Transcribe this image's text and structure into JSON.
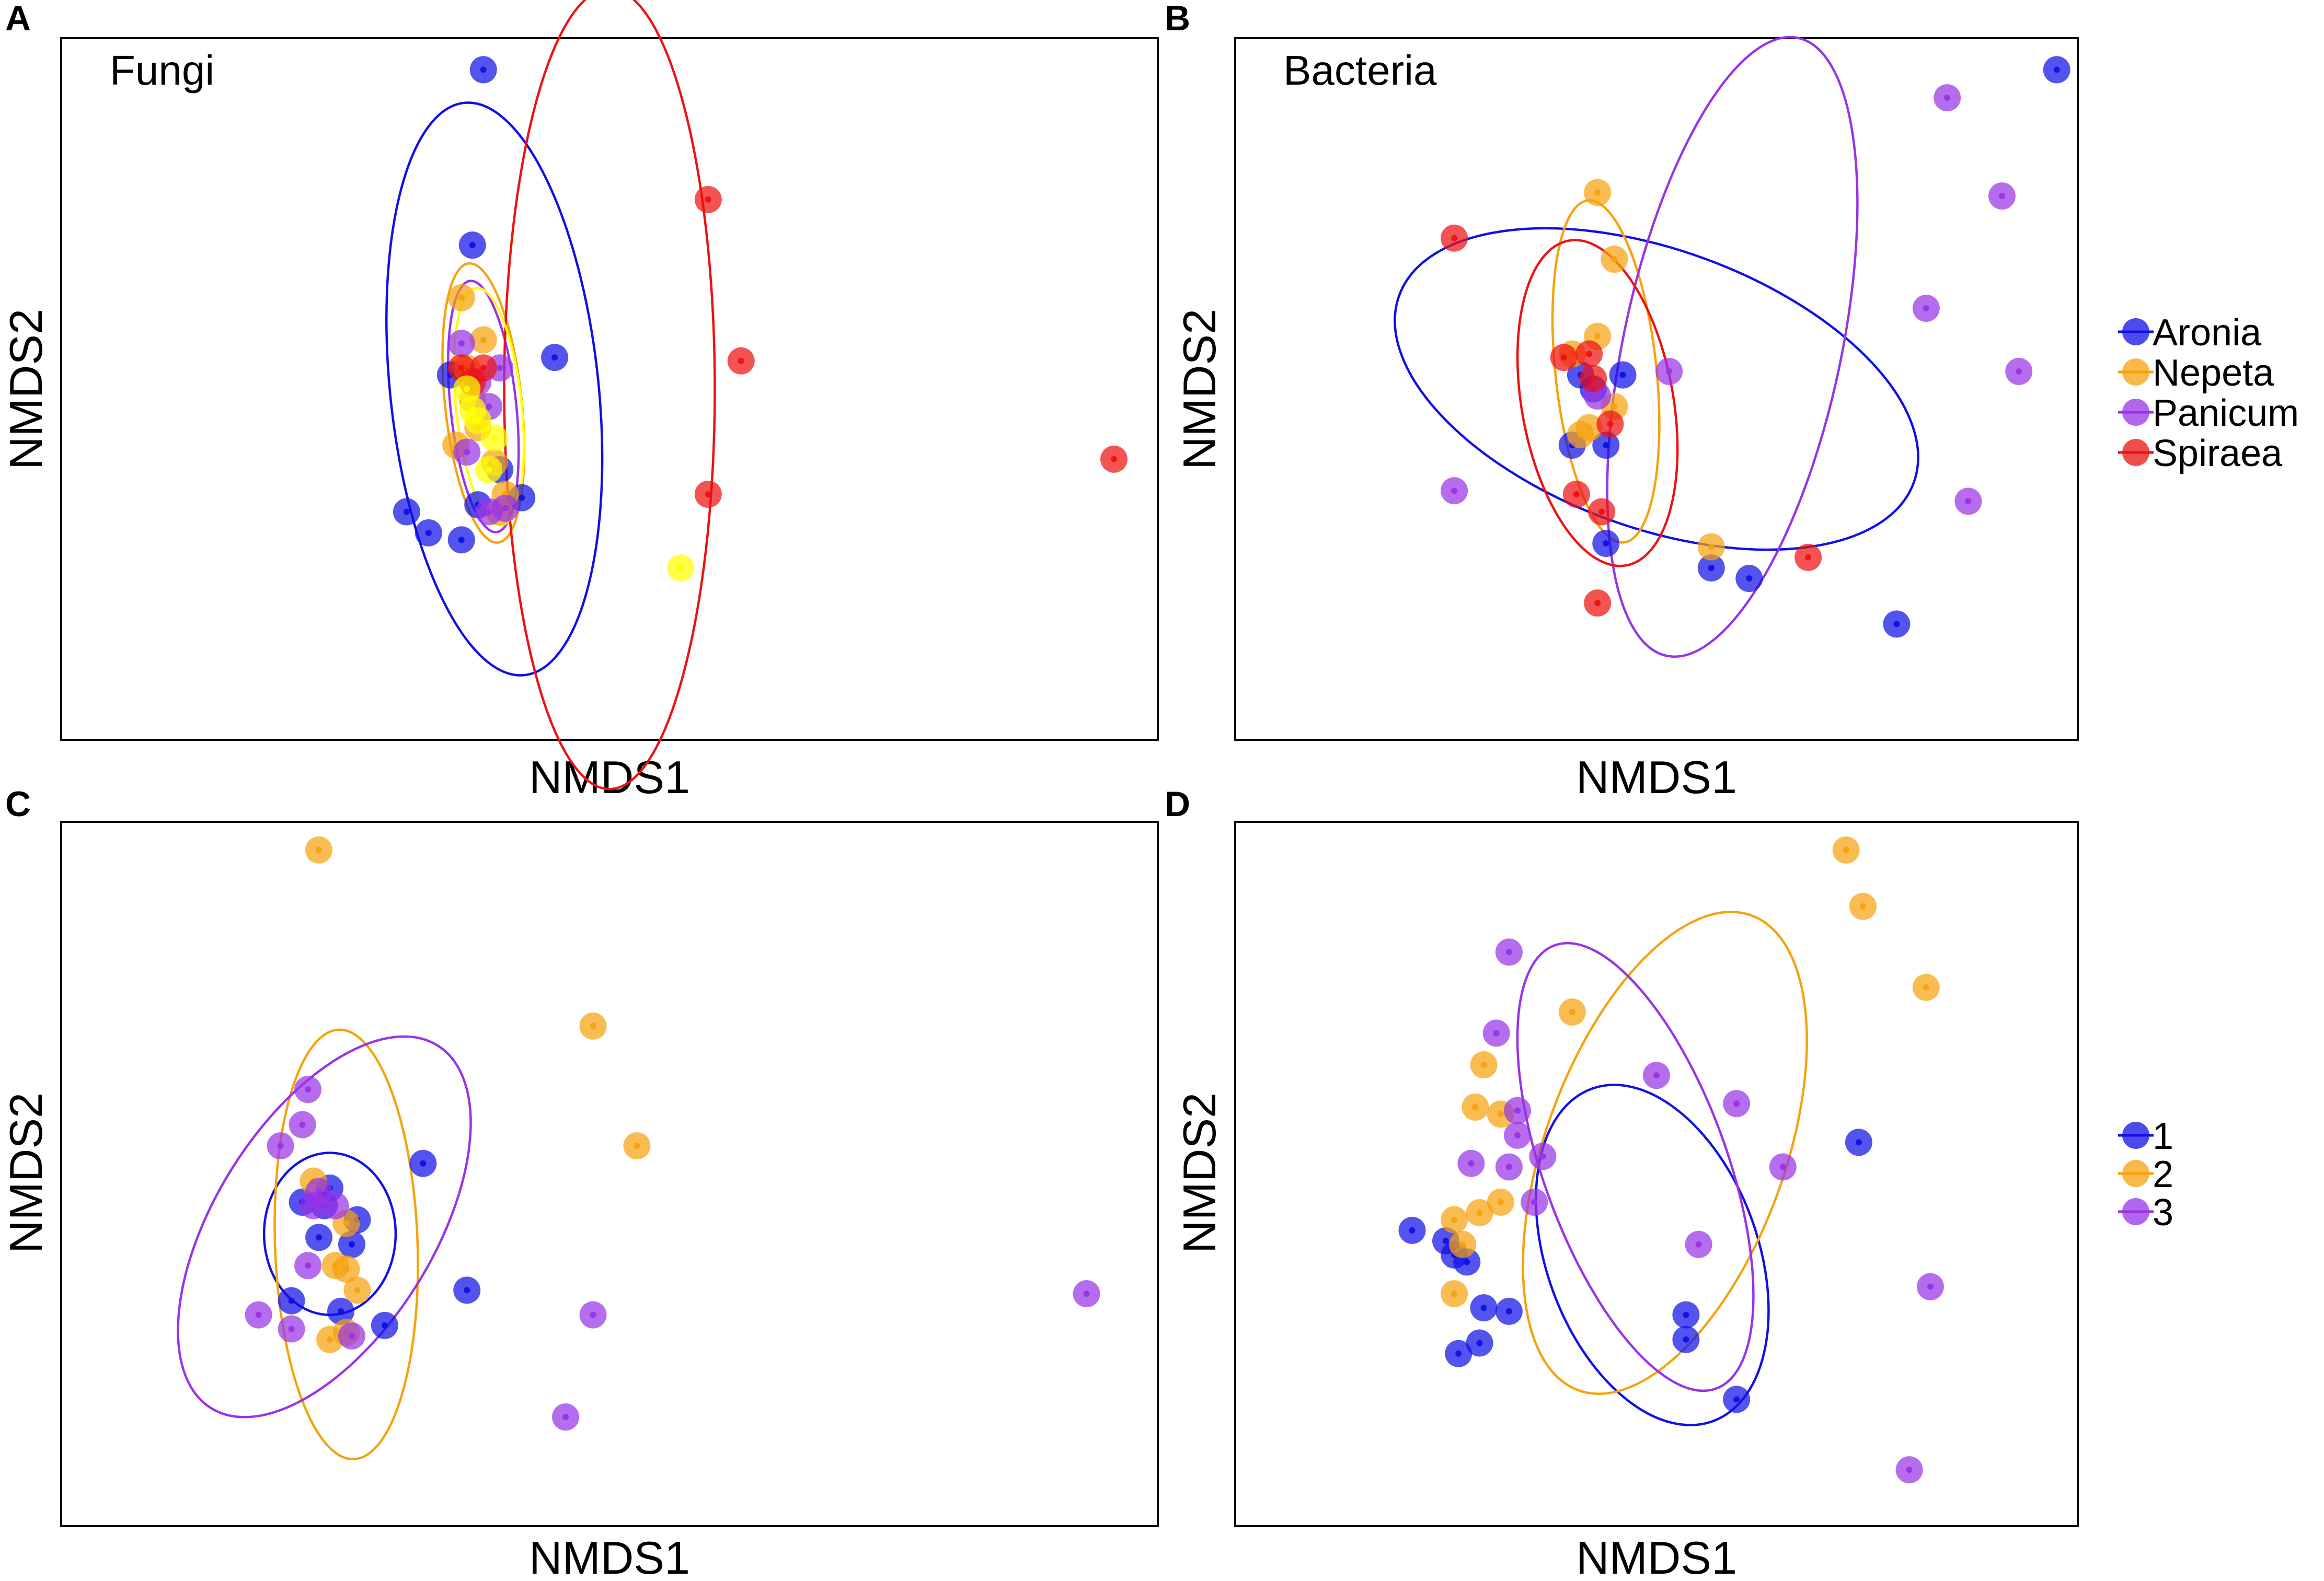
{
  "chart_data": [
    {
      "panel_letter": "A",
      "type": "scatter",
      "title": "Fungi",
      "xlabel": "NMDS1",
      "ylabel": "NMDS2",
      "xlim": [
        -1,
        1
      ],
      "ylim": [
        -1,
        1
      ],
      "series": [
        {
          "name": "Aronia",
          "color": "#1010e6",
          "points": [
            [
              -0.23,
              0.91
            ],
            [
              -0.1,
              0.09
            ],
            [
              -0.37,
              -0.35
            ],
            [
              -0.33,
              -0.41
            ],
            [
              -0.16,
              -0.31
            ],
            [
              -0.27,
              -0.43
            ],
            [
              -0.29,
              0.04
            ],
            [
              -0.2,
              -0.23
            ],
            [
              -0.25,
              0.41
            ],
            [
              -0.24,
              -0.33
            ]
          ],
          "ellipse": {
            "cx": -0.21,
            "cy": 0.0,
            "rx": 0.19,
            "ry": 0.82,
            "angle": 84
          }
        },
        {
          "name": "Nepeta",
          "color": "#f5a20e",
          "points": [
            [
              -0.27,
              0.26
            ],
            [
              -0.26,
              0.06
            ],
            [
              -0.24,
              -0.11
            ],
            [
              -0.21,
              -0.21
            ],
            [
              -0.25,
              -0.03
            ],
            [
              -0.2,
              -0.35
            ],
            [
              -0.28,
              -0.16
            ],
            [
              -0.23,
              0.14
            ],
            [
              -0.19,
              -0.3
            ]
          ],
          "ellipse": {
            "cx": -0.23,
            "cy": -0.04,
            "rx": 0.07,
            "ry": 0.4,
            "angle": 84
          }
        },
        {
          "name": "Panicum",
          "color": "#9933e6",
          "points": [
            [
              -0.27,
              0.13
            ],
            [
              -0.22,
              -0.05
            ],
            [
              -0.24,
              0.02
            ],
            [
              -0.22,
              -0.35
            ],
            [
              -0.19,
              -0.34
            ],
            [
              -0.26,
              -0.18
            ],
            [
              -0.2,
              0.06
            ]
          ],
          "ellipse": {
            "cx": -0.23,
            "cy": -0.05,
            "rx": 0.06,
            "ry": 0.36,
            "angle": 84
          }
        },
        {
          "name": "Spiraea",
          "color": "#ee1111",
          "points": [
            [
              0.18,
              0.54
            ],
            [
              0.24,
              0.08
            ],
            [
              0.18,
              -0.3
            ],
            [
              0.92,
              -0.2
            ],
            [
              -0.25,
              0.02
            ],
            [
              -0.27,
              0.06
            ],
            [
              -0.23,
              0.06
            ]
          ],
          "ellipse": {
            "cx": 0.0,
            "cy": 0.0,
            "rx": 0.73,
            "ry": 0.3,
            "angle": 0
          }
        },
        {
          "name": "",
          "color": "#ffff00",
          "points": [
            [
              0.13,
              -0.51
            ],
            [
              -0.24,
              -0.09
            ],
            [
              -0.21,
              -0.14
            ],
            [
              -0.25,
              -0.06
            ],
            [
              -0.22,
              -0.23
            ],
            [
              -0.26,
              0.0
            ]
          ],
          "ellipse": {
            "cx": -0.22,
            "cy": -0.05,
            "rx": 0.06,
            "ry": 0.34,
            "angle": 84
          }
        }
      ]
    },
    {
      "panel_letter": "B",
      "type": "scatter",
      "title": "Bacteria",
      "xlabel": "NMDS1",
      "ylabel": "NMDS2",
      "xlim": [
        -1,
        1
      ],
      "ylim": [
        -1,
        1
      ],
      "series": [
        {
          "name": "Aronia",
          "color": "#1010e6",
          "points": [
            [
              0.95,
              0.91
            ],
            [
              0.22,
              -0.54
            ],
            [
              0.57,
              -0.67
            ],
            [
              -0.12,
              -0.44
            ],
            [
              0.13,
              -0.51
            ],
            [
              -0.18,
              0.04
            ],
            [
              -0.2,
              -0.16
            ],
            [
              -0.15,
              0.0
            ],
            [
              -0.12,
              -0.16
            ],
            [
              -0.08,
              0.04
            ]
          ],
          "ellipse": {
            "cx": 0.0,
            "cy": 0.0,
            "rx": 0.33,
            "ry": 0.78,
            "angle": 20
          }
        },
        {
          "name": "Nepeta",
          "color": "#f5a20e",
          "points": [
            [
              -0.14,
              0.56
            ],
            [
              -0.1,
              0.37
            ],
            [
              -0.14,
              0.15
            ],
            [
              -0.2,
              0.1
            ],
            [
              -0.16,
              -0.11
            ],
            [
              -0.18,
              -0.13
            ],
            [
              -0.1,
              -0.05
            ],
            [
              0.13,
              -0.45
            ]
          ],
          "ellipse": {
            "cx": -0.12,
            "cy": 0.05,
            "rx": 0.12,
            "ry": 0.49,
            "angle": 84
          }
        },
        {
          "name": "Panicum",
          "color": "#9933e6",
          "points": [
            [
              0.69,
              0.83
            ],
            [
              0.82,
              0.55
            ],
            [
              0.64,
              0.23
            ],
            [
              0.86,
              0.05
            ],
            [
              0.74,
              -0.32
            ],
            [
              0.03,
              0.05
            ],
            [
              -0.48,
              -0.29
            ],
            [
              -0.14,
              -0.02
            ]
          ],
          "ellipse": {
            "cx": 0.18,
            "cy": 0.12,
            "rx": 0.75,
            "ry": 0.31,
            "angle": 12
          }
        },
        {
          "name": "Spiraea",
          "color": "#ee1111",
          "points": [
            [
              -0.48,
              0.43
            ],
            [
              -0.22,
              0.09
            ],
            [
              -0.15,
              0.03
            ],
            [
              -0.16,
              0.1
            ],
            [
              -0.19,
              -0.3
            ],
            [
              -0.13,
              -0.35
            ],
            [
              -0.11,
              -0.1
            ],
            [
              0.36,
              -0.48
            ],
            [
              -0.14,
              -0.61
            ]
          ],
          "ellipse": {
            "cx": -0.14,
            "cy": -0.04,
            "rx": 0.18,
            "ry": 0.47,
            "angle": 80
          }
        }
      ],
      "legend": {
        "placement": "right",
        "items": [
          "Aronia",
          "Nepeta",
          "Panicum",
          "Spiraea"
        ]
      }
    },
    {
      "panel_letter": "C",
      "type": "scatter",
      "title": "",
      "xlabel": "NMDS1",
      "ylabel": "NMDS2",
      "xlim": [
        -1,
        1
      ],
      "ylim": [
        -1,
        1
      ],
      "series": [
        {
          "name": "1",
          "color": "#1010e6",
          "points": [
            [
              -0.34,
              0.03
            ],
            [
              -0.51,
              -0.04
            ],
            [
              -0.46,
              -0.13
            ],
            [
              -0.47,
              -0.2
            ],
            [
              -0.58,
              -0.36
            ],
            [
              -0.49,
              -0.39
            ],
            [
              -0.26,
              -0.33
            ],
            [
              -0.41,
              -0.43
            ],
            [
              -0.53,
              -0.18
            ],
            [
              -0.56,
              -0.08
            ],
            [
              -0.52,
              -0.09
            ]
          ],
          "ellipse": {
            "cx": -0.51,
            "cy": -0.17,
            "rx": 0.12,
            "ry": 0.23,
            "angle": 90
          }
        },
        {
          "name": "2",
          "color": "#f5a20e",
          "points": [
            [
              -0.53,
              0.92
            ],
            [
              -0.03,
              0.42
            ],
            [
              0.05,
              0.08
            ],
            [
              -0.54,
              -0.02
            ],
            [
              -0.48,
              -0.14
            ],
            [
              -0.48,
              -0.27
            ],
            [
              -0.46,
              -0.33
            ],
            [
              -0.51,
              -0.47
            ],
            [
              -0.48,
              -0.45
            ],
            [
              -0.5,
              -0.26
            ]
          ],
          "ellipse": {
            "cx": -0.48,
            "cy": -0.2,
            "rx": 0.13,
            "ry": 0.61,
            "angle": 88
          }
        },
        {
          "name": "3",
          "color": "#9933e6",
          "points": [
            [
              -0.55,
              0.24
            ],
            [
              -0.56,
              0.14
            ],
            [
              -0.6,
              0.08
            ],
            [
              -0.55,
              -0.26
            ],
            [
              -0.58,
              -0.44
            ],
            [
              -0.64,
              -0.4
            ],
            [
              -0.47,
              -0.46
            ],
            [
              -0.53,
              -0.05
            ],
            [
              -0.5,
              -0.09
            ],
            [
              -0.54,
              -0.09
            ],
            [
              0.87,
              -0.34
            ],
            [
              -0.03,
              -0.4
            ],
            [
              -0.08,
              -0.69
            ]
          ],
          "ellipse": {
            "cx": -0.52,
            "cy": -0.15,
            "rx": 0.39,
            "ry": 0.31,
            "angle": 32
          }
        }
      ],
      "legend": {
        "placement": "right",
        "items": [
          "1",
          "2",
          "3"
        ]
      }
    },
    {
      "panel_letter": "D",
      "type": "scatter",
      "title": "",
      "xlabel": "NMDS1",
      "ylabel": "NMDS2",
      "xlim": [
        -1,
        1
      ],
      "ylim": [
        -1,
        1
      ],
      "series": [
        {
          "name": "1",
          "color": "#1010e6",
          "points": [
            [
              0.48,
              0.09
            ],
            [
              -0.58,
              -0.16
            ],
            [
              -0.41,
              -0.38
            ],
            [
              -0.5,
              -0.19
            ],
            [
              -0.48,
              -0.23
            ],
            [
              -0.35,
              -0.39
            ],
            [
              -0.42,
              -0.48
            ],
            [
              0.07,
              -0.4
            ],
            [
              0.07,
              -0.47
            ],
            [
              -0.47,
              -0.51
            ],
            [
              0.19,
              -0.64
            ],
            [
              -0.45,
              -0.25
            ]
          ],
          "ellipse": {
            "cx": -0.01,
            "cy": -0.23,
            "rx": 0.42,
            "ry": 0.3,
            "angle": -20
          }
        },
        {
          "name": "2",
          "color": "#f5a20e",
          "points": [
            [
              0.45,
              0.92
            ],
            [
              0.49,
              0.76
            ],
            [
              0.64,
              0.53
            ],
            [
              -0.2,
              0.46
            ],
            [
              -0.41,
              0.31
            ],
            [
              -0.43,
              0.19
            ],
            [
              -0.37,
              0.17
            ],
            [
              -0.42,
              -0.11
            ],
            [
              -0.48,
              -0.13
            ],
            [
              -0.46,
              -0.2
            ],
            [
              -0.37,
              -0.08
            ],
            [
              -0.48,
              -0.34
            ]
          ],
          "ellipse": {
            "cx": 0.02,
            "cy": 0.06,
            "rx": 0.6,
            "ry": 0.34,
            "angle": 20
          }
        },
        {
          "name": "3",
          "color": "#9933e6",
          "points": [
            [
              -0.35,
              0.63
            ],
            [
              0.0,
              0.28
            ],
            [
              0.19,
              0.2
            ],
            [
              0.3,
              0.02
            ],
            [
              0.1,
              -0.2
            ],
            [
              0.65,
              -0.32
            ],
            [
              0.6,
              -0.84
            ],
            [
              -0.38,
              0.4
            ],
            [
              -0.33,
              0.18
            ],
            [
              -0.33,
              0.11
            ],
            [
              -0.27,
              0.05
            ],
            [
              -0.35,
              0.02
            ],
            [
              -0.29,
              -0.08
            ],
            [
              -0.44,
              0.03
            ]
          ],
          "ellipse": {
            "cx": -0.05,
            "cy": 0.02,
            "rx": 0.56,
            "ry": 0.26,
            "angle": -20
          }
        }
      ]
    }
  ]
}
